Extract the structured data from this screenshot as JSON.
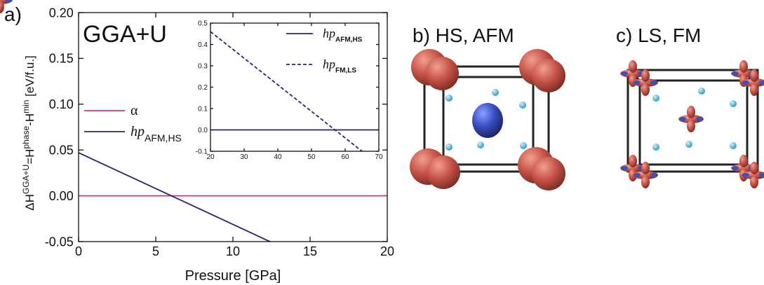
{
  "chart_data": [
    {
      "type": "line",
      "panel_label": "a)",
      "annotation": "GGA+U",
      "xlabel": "Pressure [GPa]",
      "ylabel": [
        {
          "text": "ΔH"
        },
        {
          "text": "GGA+U",
          "sup": true
        },
        {
          "text": "=H"
        },
        {
          "text": "phase",
          "sup": true
        },
        {
          "text": "-H"
        },
        {
          "text": "min",
          "sup": true
        },
        {
          "text": " [eV/f.u.]"
        }
      ],
      "xlim": [
        0,
        20
      ],
      "xticks": [
        0,
        5,
        10,
        15,
        20
      ],
      "ylim": [
        -0.05,
        0.2
      ],
      "yticks": [
        {
          "value": -0.05,
          "label": "-0.05"
        },
        {
          "value": 0,
          "label": "0.00"
        },
        {
          "value": 0.05,
          "label": "0.05"
        },
        {
          "value": 0.1,
          "label": "0.10"
        },
        {
          "value": 0.15,
          "label": "0.15"
        },
        {
          "value": 0.2,
          "label": "0.20"
        }
      ],
      "series": [
        {
          "name": "α",
          "color": "#d6307f",
          "x": [
            0,
            20
          ],
          "values": [
            0,
            0
          ]
        },
        {
          "name": "hp",
          "name_subscript": "AFM,HS",
          "color": "#27256f",
          "x": [
            0,
            12.4
          ],
          "values": [
            0.047,
            -0.05
          ]
        }
      ]
    },
    {
      "type": "line",
      "xlim": [
        20,
        70
      ],
      "xticks": [
        20,
        30,
        40,
        50,
        60,
        70
      ],
      "ylim": [
        -0.1,
        0.5
      ],
      "yticks": [
        {
          "value": -0.1,
          "label": "-0.1"
        },
        {
          "value": 0,
          "label": "0.0"
        },
        {
          "value": 0.1,
          "label": "0.1"
        },
        {
          "value": 0.2,
          "label": "0.2"
        },
        {
          "value": 0.3,
          "label": "0.3"
        },
        {
          "value": 0.4,
          "label": "0.4"
        },
        {
          "value": 0.5,
          "label": "0.5"
        }
      ],
      "series": [
        {
          "name": "hp",
          "name_subscript": "AFM,HS",
          "color": "#27256f",
          "x": [
            20,
            70
          ],
          "values": [
            0,
            0
          ]
        },
        {
          "name": "hp",
          "name_subscript": "FM,LS",
          "color": "#27256f",
          "dashed": true,
          "x": [
            20,
            65
          ],
          "values": [
            0.46,
            -0.1
          ]
        }
      ]
    }
  ],
  "panels": [
    {
      "label": "b) HS, AFM"
    },
    {
      "label": "c) LS, FM"
    }
  ]
}
